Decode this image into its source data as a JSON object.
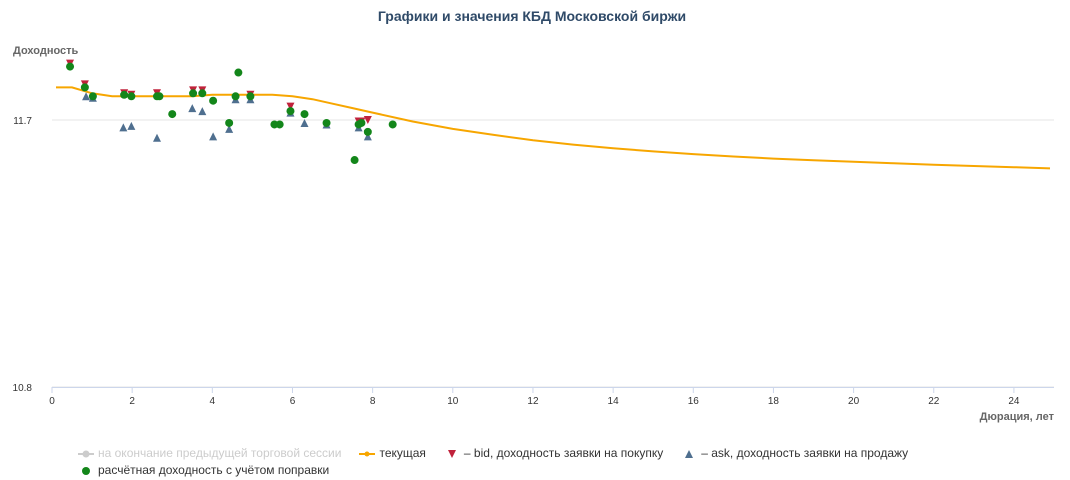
{
  "chart_data": {
    "type": "scatter",
    "title": "Графики и значения КБД Московской биржи",
    "ylabel": "Доходность",
    "xlabel": "Дюрация, лет",
    "xlim": [
      0,
      25
    ],
    "ylim": [
      10.8,
      11.9
    ],
    "x_ticks": [
      "0",
      "2",
      "4",
      "6",
      "8",
      "10",
      "12",
      "14",
      "16",
      "18",
      "20",
      "22",
      "24"
    ],
    "y_ticks": [
      "11.7",
      "10.8"
    ],
    "grid": true,
    "legend_position": "bottom",
    "colors": {
      "previous": "#cccccc",
      "current": "#f7a600",
      "bid": "#c0223b",
      "ask": "#4f6f8f",
      "calc": "#13861a"
    },
    "series": [
      {
        "name": "на окончание предыдущей торговой сессии",
        "kind": "line",
        "hidden": true,
        "x": [],
        "y": []
      },
      {
        "name": "текущая",
        "kind": "line",
        "x": [
          0.1,
          0.5,
          1.0,
          1.5,
          2.0,
          2.5,
          3.0,
          3.5,
          4.0,
          4.5,
          5.0,
          5.5,
          6.0,
          6.5,
          7.0,
          7.5,
          8.0,
          9.0,
          10.0,
          11.0,
          12.0,
          13.0,
          14.0,
          15.0,
          16.0,
          17.0,
          18.0,
          19.0,
          20.0,
          21.0,
          22.0,
          23.0,
          24.0,
          24.9
        ],
        "y": [
          11.81,
          11.81,
          11.79,
          11.78,
          11.78,
          11.78,
          11.78,
          11.78,
          11.785,
          11.785,
          11.785,
          11.785,
          11.78,
          11.77,
          11.755,
          11.74,
          11.725,
          11.695,
          11.67,
          11.65,
          11.632,
          11.617,
          11.605,
          11.594,
          11.585,
          11.577,
          11.57,
          11.564,
          11.559,
          11.554,
          11.549,
          11.545,
          11.541,
          11.537
        ]
      },
      {
        "name": "– bid, доходность заявки на покупку",
        "kind": "scatter",
        "marker": "triangle-down",
        "x": [
          0.45,
          0.82,
          1.8,
          1.98,
          2.62,
          3.52,
          3.75,
          4.95,
          5.95,
          7.65,
          7.72,
          7.88
        ],
        "y": [
          11.89,
          11.82,
          11.79,
          11.785,
          11.79,
          11.8,
          11.8,
          11.785,
          11.745,
          11.695,
          11.695,
          11.7
        ]
      },
      {
        "name": "– ask, доходность заявки на продажу",
        "kind": "scatter",
        "marker": "triangle-up",
        "x": [
          0.85,
          1.02,
          1.78,
          1.98,
          2.62,
          3.5,
          3.75,
          4.02,
          4.42,
          4.58,
          4.95,
          5.95,
          6.3,
          6.85,
          7.65,
          7.88
        ],
        "y": [
          11.78,
          11.775,
          11.675,
          11.68,
          11.64,
          11.74,
          11.73,
          11.645,
          11.67,
          11.77,
          11.77,
          11.725,
          11.69,
          11.685,
          11.675,
          11.645
        ]
      },
      {
        "name": "расчётная доходность с учётом поправки",
        "kind": "scatter",
        "marker": "circle",
        "x": [
          0.45,
          0.82,
          1.02,
          1.8,
          1.98,
          2.62,
          2.68,
          3.0,
          3.52,
          3.75,
          4.02,
          4.42,
          4.58,
          4.65,
          4.95,
          5.55,
          5.68,
          5.95,
          6.3,
          6.85,
          7.55,
          7.65,
          7.72,
          7.88,
          8.5
        ],
        "y": [
          11.88,
          11.81,
          11.78,
          11.785,
          11.78,
          11.78,
          11.78,
          11.72,
          11.79,
          11.79,
          11.765,
          11.69,
          11.78,
          11.86,
          11.78,
          11.685,
          11.685,
          11.73,
          11.72,
          11.69,
          11.565,
          11.685,
          11.69,
          11.66,
          11.685
        ]
      }
    ]
  }
}
